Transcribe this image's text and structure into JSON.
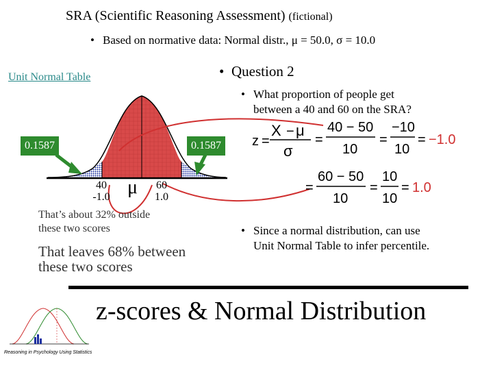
{
  "header": {
    "title": "SRA (Scientific Reasoning Assessment)",
    "title_suffix": "(fictional)",
    "subtitle": "Based on normative data: Normal distr., μ = 50.0, σ = 10.0"
  },
  "link": {
    "unit_normal_table": "Unit Normal Table"
  },
  "question": {
    "heading": "Question 2",
    "text_line1": "What proportion of people get",
    "text_line2": "between a 40 and 60 on the SRA?"
  },
  "curve": {
    "left_tail": "0.1587",
    "right_tail": "0.1587",
    "left_score": "40",
    "left_z": "-1.0",
    "mu_symbol": "μ",
    "right_score": "60",
    "right_z": "1.0",
    "colors": {
      "middle": "#d94a4a",
      "tail": "#1c2fa0",
      "box": "#2e8b2e",
      "arrow": "#d03030"
    }
  },
  "formula": {
    "z": "z",
    "X": "X",
    "mu": "μ",
    "sigma": "σ",
    "row1_num": "40 − 50",
    "row1_den": "10",
    "row1_num2": "−10",
    "row1_den2": "10",
    "row1_result": "−1.0",
    "row2_num": "60 − 50",
    "row2_den": "10",
    "row2_num2": "10",
    "row2_den2": "10",
    "row2_result": "1.0"
  },
  "notes": {
    "outside_line1": "That’s about 32% outside",
    "outside_line2": "these two scores",
    "between_line1": "That leaves 68% between",
    "between_line2": "these two scores",
    "since_line1": "Since a normal distribution, can use",
    "since_line2": "Unit Normal Table to infer percentile."
  },
  "footer": {
    "big_title": "z-scores & Normal Distribution",
    "credit": "Reasoning in Psychology Using Statistics"
  }
}
